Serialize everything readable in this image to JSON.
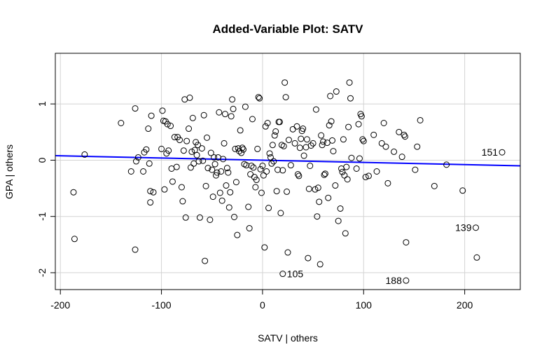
{
  "chart_data": {
    "type": "scatter",
    "title": "Added-Variable Plot: SATV",
    "xlabel": "SATV | others",
    "ylabel": "GPA | others",
    "xlim": [
      -205,
      255
    ],
    "ylim": [
      -2.3,
      1.9
    ],
    "xticks": [
      -200,
      -100,
      0,
      100,
      200
    ],
    "yticks": [
      -2,
      -1,
      0,
      1
    ],
    "grid": true,
    "colors": {
      "points": "#000000",
      "fit_line": "#0000ff",
      "grid": "#d3d3d3"
    },
    "fit_line": {
      "x": [
        -205,
        255
      ],
      "y": [
        0.08,
        -0.1
      ]
    },
    "labeled_points": [
      {
        "label": "151",
        "x": 237,
        "y": 0.14
      },
      {
        "label": "139",
        "x": 211,
        "y": -1.2
      },
      {
        "label": "105",
        "x": 20,
        "y": -2.02
      },
      {
        "label": "188",
        "x": 142,
        "y": -2.14
      }
    ],
    "points": [
      [
        -187,
        -0.57
      ],
      [
        -186,
        -1.4
      ],
      [
        -176,
        0.1
      ],
      [
        -140,
        0.66
      ],
      [
        -130,
        -0.2
      ],
      [
        -126,
        0.92
      ],
      [
        -126,
        -1.59
      ],
      [
        -125,
        -0.02
      ],
      [
        -123,
        0.05
      ],
      [
        -118,
        -0.2
      ],
      [
        -117,
        0.14
      ],
      [
        -115,
        0.19
      ],
      [
        -113,
        0.56
      ],
      [
        -112,
        -0.06
      ],
      [
        -111,
        -0.55
      ],
      [
        -111,
        -0.75
      ],
      [
        -110,
        0.79
      ],
      [
        -108,
        -0.57
      ],
      [
        -100,
        0.2
      ],
      [
        -99,
        0.88
      ],
      [
        -98,
        0.7
      ],
      [
        -97,
        -0.52
      ],
      [
        -96,
        0.69
      ],
      [
        -95,
        0.12
      ],
      [
        -94,
        0.64
      ],
      [
        -93,
        0.17
      ],
      [
        -91,
        0.61
      ],
      [
        -90,
        -0.15
      ],
      [
        -89,
        -0.38
      ],
      [
        -87,
        0.41
      ],
      [
        -85,
        -0.12
      ],
      [
        -84,
        0.41
      ],
      [
        -82,
        0.36
      ],
      [
        -80,
        -0.48
      ],
      [
        -79,
        -0.73
      ],
      [
        -78,
        0.17
      ],
      [
        -77,
        1.08
      ],
      [
        -76,
        -1.02
      ],
      [
        -75,
        0.34
      ],
      [
        -73,
        0.56
      ],
      [
        -72,
        1.11
      ],
      [
        -71,
        -0.13
      ],
      [
        -70,
        0.15
      ],
      [
        -69,
        0.75
      ],
      [
        -68,
        -0.06
      ],
      [
        -67,
        0.18
      ],
      [
        -66,
        0.32
      ],
      [
        -65,
        0.09
      ],
      [
        -64,
        0.27
      ],
      [
        -63,
        -0.02
      ],
      [
        -62,
        -1.02
      ],
      [
        -60,
        0.21
      ],
      [
        -59,
        -0.01
      ],
      [
        -58,
        0.8
      ],
      [
        -57,
        -1.79
      ],
      [
        -56,
        -0.46
      ],
      [
        -55,
        0.4
      ],
      [
        -54,
        -0.14
      ],
      [
        -52,
        -1.06
      ],
      [
        -51,
        0.13
      ],
      [
        -50,
        -0.17
      ],
      [
        -49,
        -0.65
      ],
      [
        -48,
        0.05
      ],
      [
        -47,
        -0.07
      ],
      [
        -46,
        -0.27
      ],
      [
        -45,
        -0.22
      ],
      [
        -44,
        0.05
      ],
      [
        -43,
        0.85
      ],
      [
        -42,
        -0.58
      ],
      [
        -41,
        -0.2
      ],
      [
        -40,
        -0.72
      ],
      [
        -39,
        0.02
      ],
      [
        -38,
        0.3
      ],
      [
        -37,
        0.82
      ],
      [
        -36,
        -0.45
      ],
      [
        -35,
        -0.14
      ],
      [
        -34,
        -0.22
      ],
      [
        -33,
        -0.84
      ],
      [
        -32,
        -0.57
      ],
      [
        -31,
        0.78
      ],
      [
        -30,
        1.08
      ],
      [
        -29,
        0.91
      ],
      [
        -28,
        -1.01
      ],
      [
        -27,
        0.2
      ],
      [
        -26,
        -0.39
      ],
      [
        -25,
        -1.33
      ],
      [
        -24,
        0.21
      ],
      [
        -23,
        0.16
      ],
      [
        -22,
        0.53
      ],
      [
        -21,
        0.13
      ],
      [
        -20,
        0.22
      ],
      [
        -19,
        0.19
      ],
      [
        -18,
        -0.07
      ],
      [
        -17,
        0.95
      ],
      [
        -16,
        -0.09
      ],
      [
        -14,
        -0.83
      ],
      [
        -13,
        -1.21
      ],
      [
        -12,
        -0.25
      ],
      [
        -11,
        -0.1
      ],
      [
        -10,
        0.73
      ],
      [
        -9,
        -0.13
      ],
      [
        -8,
        -0.3
      ],
      [
        -7,
        -0.48
      ],
      [
        -6,
        -0.35
      ],
      [
        -5,
        0.2
      ],
      [
        -4,
        1.12
      ],
      [
        -3,
        1.1
      ],
      [
        -2,
        -0.16
      ],
      [
        -1,
        -0.58
      ],
      [
        0,
        -0.1
      ],
      [
        1,
        -0.27
      ],
      [
        2,
        -1.55
      ],
      [
        3,
        0.6
      ],
      [
        4,
        -0.2
      ],
      [
        5,
        0.66
      ],
      [
        6,
        -0.85
      ],
      [
        7,
        0.12
      ],
      [
        8,
        0.05
      ],
      [
        9,
        -0.06
      ],
      [
        10,
        0.27
      ],
      [
        11,
        -0.02
      ],
      [
        12,
        0.44
      ],
      [
        13,
        0.51
      ],
      [
        14,
        -0.55
      ],
      [
        15,
        -0.17
      ],
      [
        16,
        0.68
      ],
      [
        17,
        0.68
      ],
      [
        18,
        -0.94
      ],
      [
        19,
        0.27
      ],
      [
        20,
        -0.18
      ],
      [
        21,
        0.25
      ],
      [
        22,
        1.38
      ],
      [
        23,
        1.12
      ],
      [
        24,
        -0.56
      ],
      [
        25,
        -1.64
      ],
      [
        26,
        0.36
      ],
      [
        28,
        -0.09
      ],
      [
        30,
        0.55
      ],
      [
        32,
        0.3
      ],
      [
        34,
        0.6
      ],
      [
        35,
        -0.25
      ],
      [
        36,
        -0.28
      ],
      [
        37,
        0.22
      ],
      [
        38,
        0.38
      ],
      [
        39,
        0.52
      ],
      [
        40,
        0.56
      ],
      [
        41,
        0.08
      ],
      [
        43,
        0.23
      ],
      [
        44,
        0.37
      ],
      [
        45,
        -1.74
      ],
      [
        46,
        -0.51
      ],
      [
        47,
        -0.1
      ],
      [
        48,
        0.26
      ],
      [
        50,
        0.3
      ],
      [
        52,
        -0.52
      ],
      [
        53,
        0.9
      ],
      [
        54,
        -1.0
      ],
      [
        55,
        -0.49
      ],
      [
        56,
        -0.74
      ],
      [
        57,
        -1.85
      ],
      [
        58,
        0.44
      ],
      [
        59,
        0.27
      ],
      [
        60,
        0.33
      ],
      [
        61,
        -0.26
      ],
      [
        62,
        -0.24
      ],
      [
        64,
        0.31
      ],
      [
        65,
        -0.67
      ],
      [
        66,
        0.62
      ],
      [
        67,
        1.14
      ],
      [
        68,
        0.69
      ],
      [
        69,
        0.35
      ],
      [
        70,
        0.16
      ],
      [
        72,
        -0.45
      ],
      [
        73,
        1.22
      ],
      [
        75,
        -1.08
      ],
      [
        77,
        -0.86
      ],
      [
        78,
        -0.15
      ],
      [
        79,
        -0.21
      ],
      [
        80,
        0.37
      ],
      [
        81,
        -0.27
      ],
      [
        82,
        -1.3
      ],
      [
        83,
        -0.12
      ],
      [
        84,
        -0.34
      ],
      [
        85,
        0.59
      ],
      [
        86,
        1.38
      ],
      [
        87,
        1.1
      ],
      [
        88,
        0.04
      ],
      [
        93,
        -0.15
      ],
      [
        95,
        0.64
      ],
      [
        96,
        0.03
      ],
      [
        97,
        0.82
      ],
      [
        98,
        0.78
      ],
      [
        99,
        0.37
      ],
      [
        100,
        0.34
      ],
      [
        102,
        -0.3
      ],
      [
        105,
        -0.28
      ],
      [
        110,
        0.45
      ],
      [
        113,
        -0.2
      ],
      [
        118,
        0.3
      ],
      [
        120,
        0.66
      ],
      [
        122,
        0.24
      ],
      [
        124,
        -0.41
      ],
      [
        130,
        0.15
      ],
      [
        135,
        0.5
      ],
      [
        138,
        0.06
      ],
      [
        140,
        0.45
      ],
      [
        141,
        0.42
      ],
      [
        142,
        -1.46
      ],
      [
        151,
        -0.17
      ],
      [
        153,
        0.24
      ],
      [
        156,
        0.71
      ],
      [
        170,
        -0.46
      ],
      [
        182,
        -0.08
      ],
      [
        198,
        -0.54
      ],
      [
        212,
        -1.73
      ]
    ]
  }
}
